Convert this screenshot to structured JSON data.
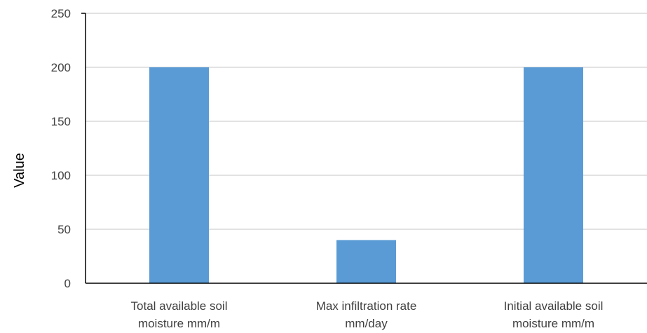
{
  "chart_data": {
    "type": "bar",
    "categories": [
      [
        "Total available soil",
        "moisture mm/m"
      ],
      [
        "Max infiltration rate",
        "mm/day"
      ],
      [
        "Initial available soil",
        "moisture mm/m"
      ]
    ],
    "values": [
      200,
      40,
      200
    ],
    "ylabel": "Value",
    "xlabel": "",
    "title": "",
    "ylim": [
      0,
      250
    ],
    "yticks": [
      0,
      50,
      100,
      150,
      200,
      250
    ],
    "grid": true,
    "legend": "none",
    "colors": {
      "bar": "#5b9bd5",
      "grid": "#d9d9d9",
      "axis": "#000000",
      "text": "#404040"
    }
  }
}
